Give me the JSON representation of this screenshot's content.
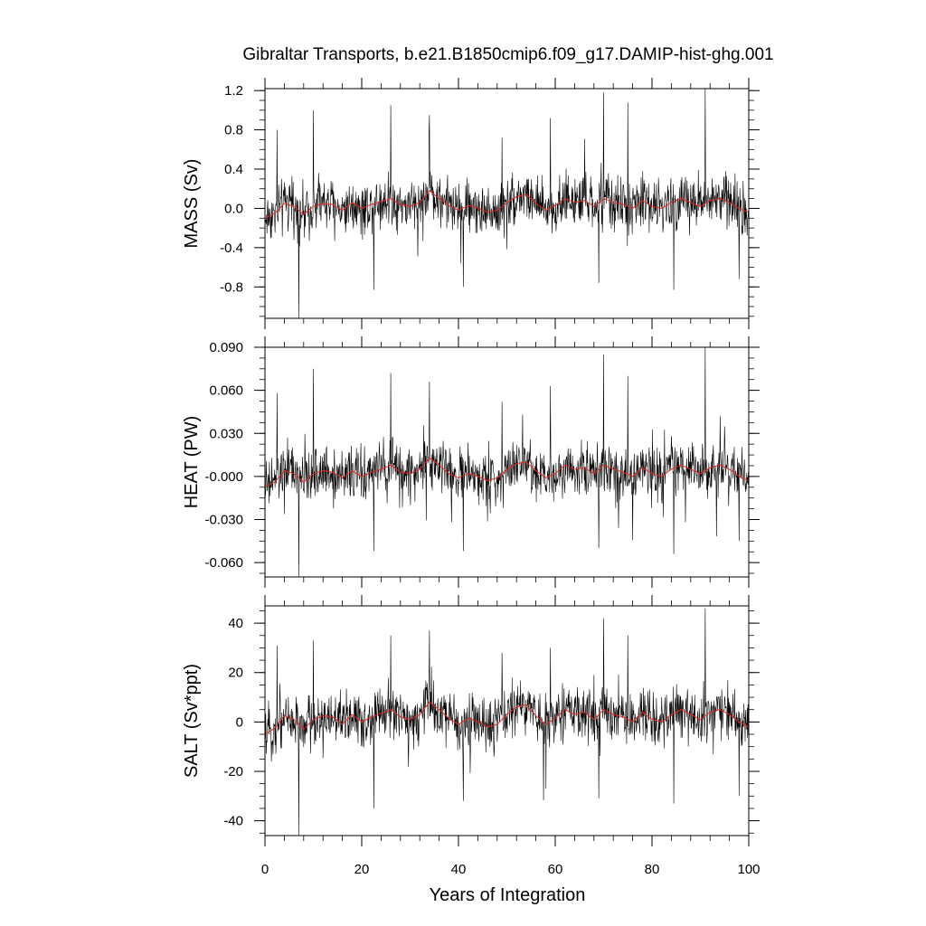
{
  "title": "Gibraltar Transports, b.e21.B1850cmip6.f09_g17.DAMIP-hist-ghg.001",
  "xlabel": "Years of Integration",
  "colors": {
    "raw": "#000000",
    "smooth": "#e8281e",
    "frame": "#000000"
  },
  "chart_data": [
    {
      "type": "line",
      "ylabel": "MASS (Sv)",
      "xlim": [
        0,
        100
      ],
      "ylim": [
        -1.12,
        1.22
      ],
      "yticks": [
        1.2,
        0.8,
        0.4,
        0.0,
        -0.4,
        -0.8
      ],
      "ytick_labels": [
        "1.2",
        "0.8",
        "0.4",
        "0.0",
        "-0.4",
        "-0.8"
      ],
      "series": [
        {
          "x": [
            0,
            2,
            4,
            6,
            8,
            10,
            12,
            14,
            16,
            18,
            20,
            22,
            24,
            26,
            28,
            30,
            32,
            34,
            36,
            38,
            40,
            42,
            44,
            46,
            48,
            50,
            52,
            54,
            56,
            58,
            60,
            62,
            64,
            66,
            68,
            70,
            72,
            74,
            76,
            78,
            80,
            82,
            84,
            86,
            88,
            90,
            92,
            94,
            96,
            98,
            100
          ],
          "values": [
            -0.1,
            -0.05,
            0.05,
            0.02,
            -0.06,
            0.02,
            0.05,
            0.04,
            -0.02,
            0.06,
            0.0,
            0.04,
            0.07,
            0.1,
            0.04,
            0.02,
            0.06,
            0.18,
            0.1,
            0.03,
            -0.02,
            0.03,
            0.0,
            -0.04,
            -0.02,
            0.06,
            0.12,
            0.14,
            0.05,
            -0.02,
            0.03,
            0.1,
            0.06,
            0.08,
            0.02,
            0.1,
            0.06,
            0.04,
            0.0,
            0.08,
            0.02,
            0.0,
            0.06,
            0.1,
            0.06,
            0.02,
            0.08,
            0.1,
            0.06,
            0.0,
            -0.04
          ]
        }
      ],
      "spikes": [
        [
          2.5,
          0.8
        ],
        [
          7,
          -1.12
        ],
        [
          10,
          1.0
        ],
        [
          22.5,
          -0.83
        ],
        [
          26,
          1.05
        ],
        [
          34,
          0.95
        ],
        [
          41,
          -0.8
        ],
        [
          49,
          0.72
        ],
        [
          59,
          0.92
        ],
        [
          69,
          -0.76
        ],
        [
          70,
          1.18
        ],
        [
          75,
          1.08
        ],
        [
          84.5,
          -0.83
        ],
        [
          91,
          1.22
        ],
        [
          98,
          -0.72
        ]
      ]
    },
    {
      "type": "line",
      "ylabel": "HEAT (PW)",
      "xlim": [
        0,
        100
      ],
      "ylim": [
        -0.07,
        0.09
      ],
      "yticks": [
        0.09,
        0.06,
        0.03,
        0.0,
        -0.03,
        -0.06
      ],
      "ytick_labels": [
        "0.090",
        "0.060",
        "0.030",
        "-0.000",
        "-0.030",
        "-0.060"
      ],
      "series": [
        {
          "x": [
            0,
            2,
            4,
            6,
            8,
            10,
            12,
            14,
            16,
            18,
            20,
            22,
            24,
            26,
            28,
            30,
            32,
            34,
            36,
            38,
            40,
            42,
            44,
            46,
            48,
            50,
            52,
            54,
            56,
            58,
            60,
            62,
            64,
            66,
            68,
            70,
            72,
            74,
            76,
            78,
            80,
            82,
            84,
            86,
            88,
            90,
            92,
            94,
            96,
            98,
            100
          ],
          "values": [
            -0.007,
            -0.004,
            0.004,
            0.002,
            -0.004,
            0.002,
            0.004,
            0.003,
            -0.001,
            0.004,
            0.0,
            0.003,
            0.005,
            0.008,
            0.003,
            0.002,
            0.005,
            0.013,
            0.008,
            0.002,
            -0.001,
            0.002,
            0.0,
            -0.003,
            -0.001,
            0.005,
            0.009,
            0.01,
            0.004,
            -0.001,
            0.002,
            0.008,
            0.005,
            0.006,
            0.002,
            0.008,
            0.005,
            0.003,
            0.0,
            0.006,
            0.002,
            0.0,
            0.005,
            0.008,
            0.005,
            0.002,
            0.006,
            0.008,
            0.005,
            0.0,
            -0.003
          ]
        }
      ],
      "spikes": [
        [
          2.5,
          0.058
        ],
        [
          7,
          -0.07
        ],
        [
          10,
          0.075
        ],
        [
          22.5,
          -0.052
        ],
        [
          26,
          0.072
        ],
        [
          34,
          0.066
        ],
        [
          41,
          -0.052
        ],
        [
          49,
          0.052
        ],
        [
          59,
          0.063
        ],
        [
          69,
          -0.05
        ],
        [
          70,
          0.085
        ],
        [
          75,
          0.07
        ],
        [
          84.5,
          -0.054
        ],
        [
          91,
          0.09
        ],
        [
          98,
          -0.045
        ]
      ]
    },
    {
      "type": "line",
      "ylabel": "SALT (Sv*ppt)",
      "xlim": [
        0,
        100
      ],
      "ylim": [
        -46,
        47
      ],
      "yticks": [
        40,
        20,
        0,
        -20,
        -40
      ],
      "ytick_labels": [
        "40",
        "20",
        "0",
        "-20",
        "-40"
      ],
      "series": [
        {
          "x": [
            0,
            2,
            4,
            6,
            8,
            10,
            12,
            14,
            16,
            18,
            20,
            22,
            24,
            26,
            28,
            30,
            32,
            34,
            36,
            38,
            40,
            42,
            44,
            46,
            48,
            50,
            52,
            54,
            56,
            58,
            60,
            62,
            64,
            66,
            68,
            70,
            72,
            74,
            76,
            78,
            80,
            82,
            84,
            86,
            88,
            90,
            92,
            94,
            96,
            98,
            100
          ],
          "values": [
            -5,
            -2.5,
            2.5,
            1,
            -3,
            1,
            2.5,
            2,
            -1,
            3,
            0,
            2,
            3.5,
            5,
            2,
            1,
            3,
            8,
            5,
            1.5,
            -1,
            1.5,
            0,
            -2,
            -1,
            3,
            6,
            7,
            2.5,
            -1,
            1.5,
            5,
            3,
            4,
            1,
            5,
            3,
            2,
            0,
            4,
            1,
            0,
            3,
            5,
            3,
            1,
            4,
            5,
            3,
            0,
            -2
          ]
        }
      ],
      "spikes": [
        [
          2.5,
          31
        ],
        [
          7,
          -46
        ],
        [
          10,
          33
        ],
        [
          22.5,
          -35
        ],
        [
          26,
          35
        ],
        [
          34,
          37
        ],
        [
          41,
          -32
        ],
        [
          49,
          28
        ],
        [
          59,
          30
        ],
        [
          69,
          -31
        ],
        [
          70,
          42
        ],
        [
          75,
          35
        ],
        [
          84.5,
          -33
        ],
        [
          91,
          46
        ],
        [
          98,
          -30
        ]
      ]
    }
  ],
  "xaxis": {
    "xlim": [
      0,
      100
    ],
    "ticks": [
      0,
      20,
      40,
      60,
      80,
      100
    ],
    "tick_labels": [
      "0",
      "20",
      "40",
      "60",
      "80",
      "100"
    ]
  }
}
